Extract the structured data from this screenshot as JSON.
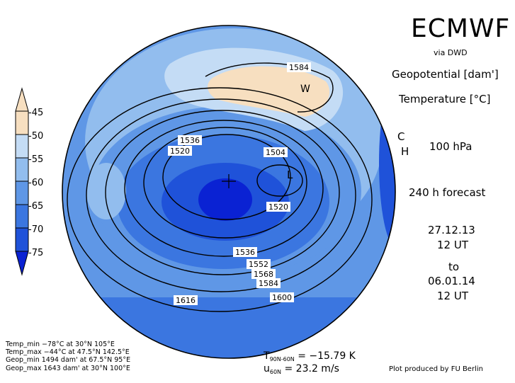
{
  "header": {
    "brand": "ECMWF",
    "via": "via DWD",
    "param1": "Geopotential [dam']",
    "param2": "Temperature [°C]",
    "level": "100 hPa",
    "forecast": "240 h forecast",
    "init_date": "27.12.13",
    "init_time": "12 UT",
    "to_label": "to",
    "valid_date": "06.01.14",
    "valid_time": "12 UT"
  },
  "colorbar": {
    "labels": [
      "-45",
      "-50",
      "-55",
      "-60",
      "-65",
      "-70",
      "-75"
    ],
    "colors": [
      "#f7dfc0",
      "#c4dcf5",
      "#92bdee",
      "#5f97e6",
      "#3b76e0",
      "#1f52d9",
      "#0a22d3"
    ]
  },
  "map": {
    "contour_labels": [
      "1584",
      "1536",
      "1520",
      "1504",
      "1520",
      "1536",
      "1552",
      "1568",
      "1584",
      "1600",
      "1616"
    ],
    "markers": {
      "warm": "W",
      "low": "L",
      "cold": "C",
      "high": "H"
    }
  },
  "stats": {
    "temp_min": "Temp_min −78°C at 30°N 105°E",
    "temp_max": "Temp_max −44°C at 47.5°N 142.5°E",
    "geop_min": "Geop_min 1494 dam' at 67.5°N 95°E",
    "geop_max": "Geop_max 1643 dam' at 30°N 100°E"
  },
  "means": {
    "t_symbol": "T",
    "t_sub": "90N-60N",
    "t_value": "= −15.79 K",
    "u_symbol": "u",
    "u_sub": "60N",
    "u_value": "= 23.2 m/s"
  },
  "credit": "Plot produced by FU Berlin"
}
